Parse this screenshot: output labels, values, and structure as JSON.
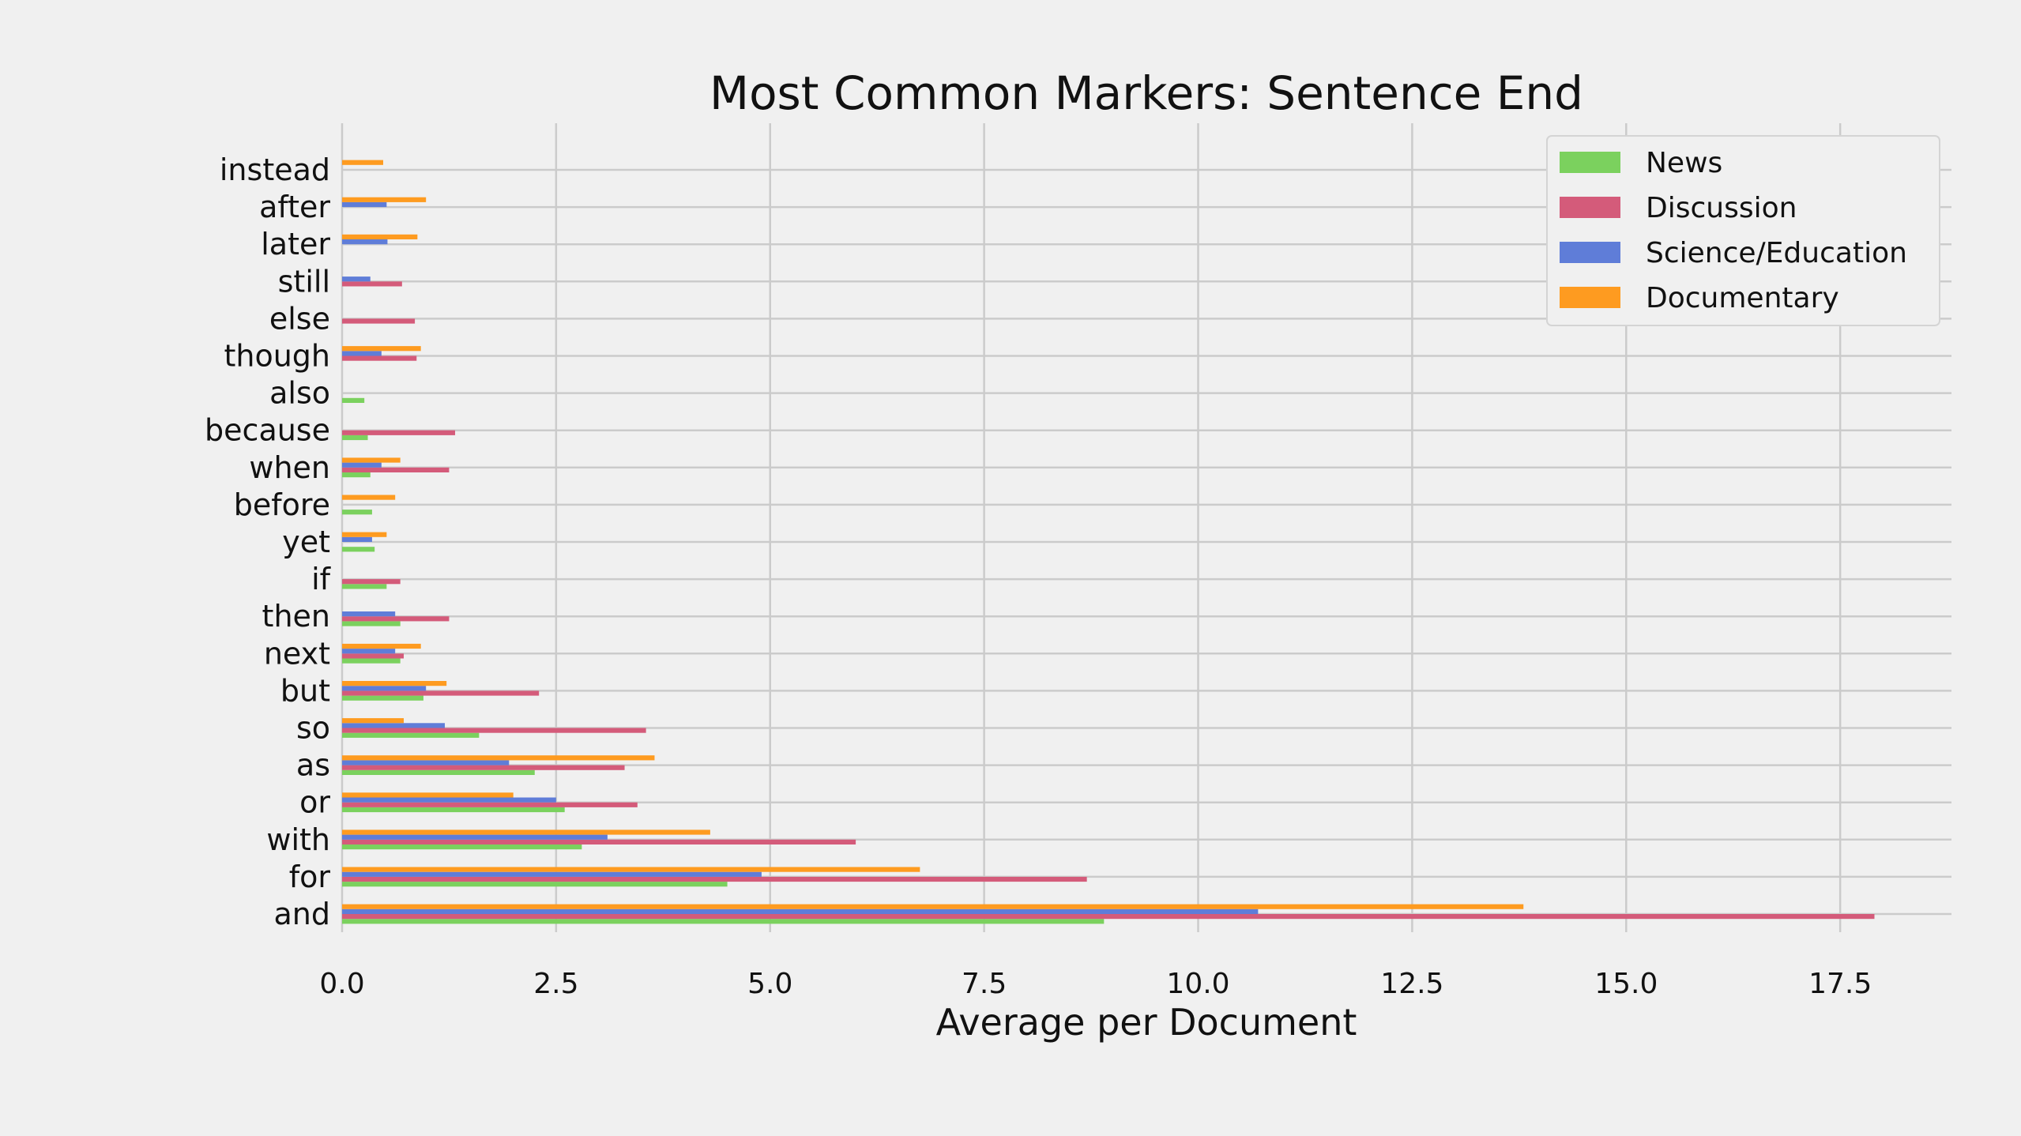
{
  "chart_data": {
    "type": "bar",
    "orientation": "horizontal",
    "title": "Most Common Markers: Sentence End",
    "xlabel": "Average per Document",
    "ylabel": "",
    "xlim": [
      0,
      18.8
    ],
    "xticks": [
      "0.0",
      "2.5",
      "5.0",
      "7.5",
      "10.0",
      "12.5",
      "15.0",
      "17.5"
    ],
    "grid": true,
    "legend_position": "top-right",
    "categories": [
      "and",
      "for",
      "with",
      "or",
      "as",
      "so",
      "but",
      "next",
      "then",
      "if",
      "yet",
      "before",
      "when",
      "because",
      "also",
      "though",
      "else",
      "still",
      "later",
      "after",
      "instead"
    ],
    "series": [
      {
        "name": "News",
        "color": "#7bd15e",
        "values": [
          8.9,
          4.5,
          2.8,
          2.6,
          2.25,
          1.6,
          0.95,
          0.68,
          0.68,
          0.52,
          0.38,
          0.35,
          0.33,
          0.3,
          0.26,
          0,
          0,
          0,
          0,
          0,
          0
        ]
      },
      {
        "name": "Discussion",
        "color": "#d45b7a",
        "values": [
          17.9,
          8.7,
          6.0,
          3.45,
          3.3,
          3.55,
          2.3,
          0.72,
          1.25,
          0.68,
          0,
          0,
          1.25,
          1.32,
          0,
          0.87,
          0.85,
          0.7,
          0,
          0,
          0
        ]
      },
      {
        "name": "Science/Education",
        "color": "#5f7dd8",
        "values": [
          10.7,
          4.9,
          3.1,
          2.5,
          1.95,
          1.2,
          0.98,
          0.62,
          0.62,
          0,
          0.35,
          0,
          0.46,
          0,
          0,
          0.46,
          0,
          0.33,
          0.53,
          0.52,
          0
        ]
      },
      {
        "name": "Documentary",
        "color": "#fe9b20",
        "values": [
          13.8,
          6.75,
          4.3,
          2.0,
          3.65,
          0.72,
          1.22,
          0.92,
          0,
          0,
          0.52,
          0.62,
          0.68,
          0,
          0,
          0.92,
          0,
          0,
          0.88,
          0.98,
          0.48
        ]
      }
    ]
  }
}
